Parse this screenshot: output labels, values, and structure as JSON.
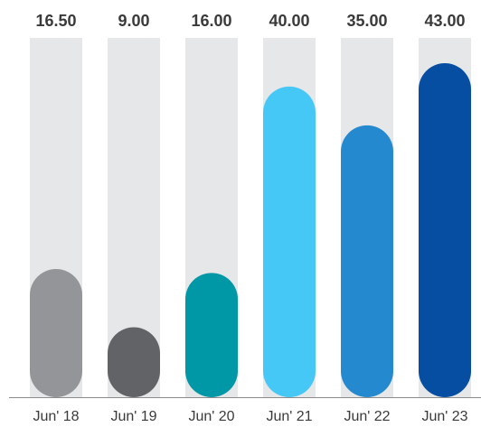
{
  "chart_data": {
    "type": "bar",
    "categories": [
      "Jun' 18",
      "Jun' 19",
      "Jun' 20",
      "Jun' 21",
      "Jun' 22",
      "Jun' 23"
    ],
    "values": [
      16.5,
      9.0,
      16.0,
      40.0,
      35.0,
      43.0
    ],
    "value_labels": [
      "16.50",
      "9.00",
      "16.00",
      "40.00",
      "35.00",
      "43.00"
    ],
    "bar_colors": [
      "#939598",
      "#626366",
      "#0097a7",
      "#45c8f5",
      "#2589cf",
      "#064ea1"
    ],
    "track_color": "#e6e7e8",
    "axis_color": "#8a8a8a",
    "ylim": [
      0,
      43
    ],
    "grid": false,
    "legend": "none",
    "title": "",
    "xlabel": "",
    "ylabel": ""
  }
}
